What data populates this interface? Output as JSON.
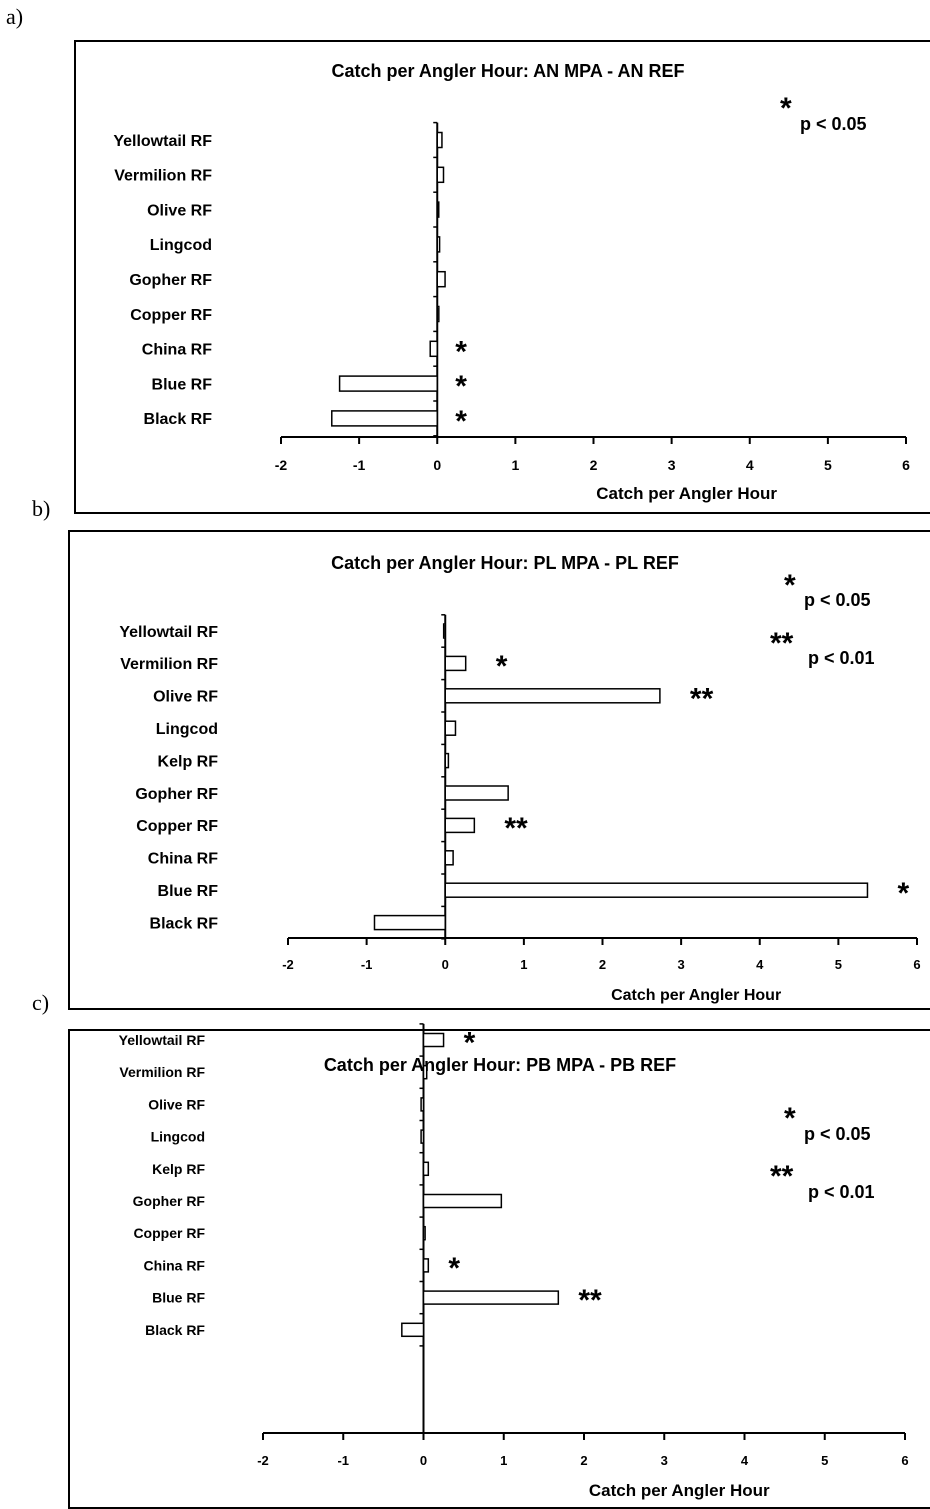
{
  "panels": [
    {
      "letter": "a)"
    },
    {
      "letter": "b)"
    },
    {
      "letter": "c)"
    }
  ],
  "chart_data": [
    {
      "type": "bar",
      "orientation": "horizontal",
      "title": "Catch per Angler Hour: AN MPA - AN REF",
      "xlabel": "Catch per Angler Hour",
      "xlim": [
        -2,
        6
      ],
      "xticks": [
        "-2",
        "-1",
        "0",
        "1",
        "2",
        "3",
        "4",
        "5",
        "6"
      ],
      "categories": [
        "Yellowtail RF",
        "Vermilion RF",
        "Olive RF",
        "Lingcod",
        "Gopher RF",
        "Copper RF",
        "China RF",
        "Blue RF",
        "Black RF"
      ],
      "values": [
        0.06,
        0.08,
        0.0,
        0.03,
        0.1,
        0.02,
        -0.09,
        -1.25,
        -1.35
      ],
      "significance": [
        "",
        "",
        "",
        "",
        "",
        "",
        "*",
        "*",
        "*"
      ],
      "legend": [
        {
          "stars": "*",
          "label": "p < 0.05"
        }
      ]
    },
    {
      "type": "bar",
      "orientation": "horizontal",
      "title": "Catch per Angler Hour: PL MPA - PL REF",
      "xlabel": "Catch per Angler Hour",
      "xlim": [
        -2,
        6
      ],
      "xticks": [
        "-2",
        "-1",
        "0",
        "1",
        "2",
        "3",
        "4",
        "5",
        "6"
      ],
      "categories": [
        "Yellowtail RF",
        "Vermilion RF",
        "Olive RF",
        "Lingcod",
        "Kelp RF",
        "Gopher RF",
        "Copper RF",
        "China RF",
        "Blue RF",
        "Black RF"
      ],
      "values": [
        -0.02,
        0.26,
        2.73,
        0.13,
        0.04,
        0.8,
        0.37,
        0.1,
        5.37,
        -0.9
      ],
      "significance": [
        "",
        "*",
        "**",
        "",
        "",
        "",
        "**",
        "",
        "*",
        ""
      ],
      "legend": [
        {
          "stars": "*",
          "label": "p < 0.05"
        },
        {
          "stars": "**",
          "label": "p < 0.01"
        }
      ]
    },
    {
      "type": "bar",
      "orientation": "horizontal",
      "title": "Catch per Angler Hour: PB MPA - PB REF",
      "xlabel": "Catch per Angler Hour",
      "xlim": [
        -2,
        6
      ],
      "xticks": [
        "-2",
        "-1",
        "0",
        "1",
        "2",
        "3",
        "4",
        "5",
        "6"
      ],
      "categories": [
        "Yellowtail RF",
        "Vermilion RF",
        "Olive RF",
        "Lingcod",
        "Kelp RF",
        "Gopher RF",
        "Copper RF",
        "China RF",
        "Blue RF",
        "Black RF"
      ],
      "values": [
        0.25,
        0.04,
        -0.03,
        -0.03,
        0.06,
        0.97,
        0.02,
        0.06,
        1.68,
        -0.27
      ],
      "significance": [
        "*",
        "",
        "",
        "",
        "",
        "",
        "",
        "*",
        "**",
        ""
      ],
      "legend": [
        {
          "stars": "*",
          "label": "p < 0.05"
        },
        {
          "stars": "**",
          "label": "p < 0.01"
        }
      ]
    }
  ]
}
